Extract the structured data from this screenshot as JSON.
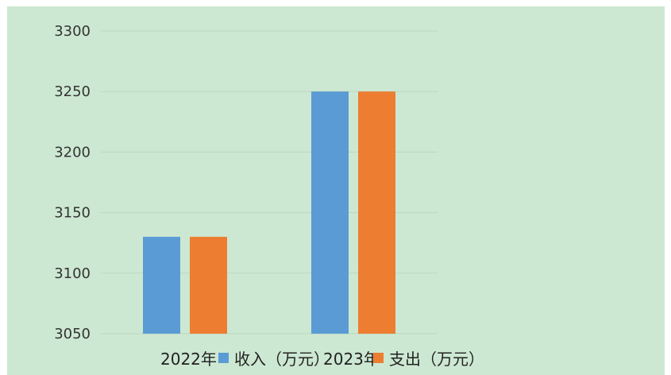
{
  "chart_data": {
    "type": "bar",
    "categories": [
      "2022年",
      "2023年"
    ],
    "series": [
      {
        "name": "收入（万元）",
        "values": [
          3130,
          3250
        ],
        "color": "#5b9bd5"
      },
      {
        "name": "支出（万元）",
        "values": [
          3130,
          3250
        ],
        "color": "#ed7d31"
      }
    ],
    "yticks": [
      "3300",
      "3250",
      "3200",
      "3150",
      "3100",
      "3050"
    ],
    "ylim": [
      3050,
      3300
    ],
    "grid": true,
    "legend_position": "bottom",
    "background_color": "#cde8d2",
    "gridline_color": "#b9d7bf"
  }
}
